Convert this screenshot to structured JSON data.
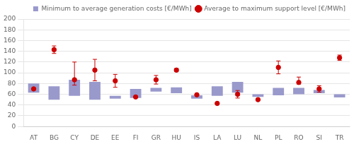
{
  "chart_data": {
    "type": "bar",
    "categories": [
      "AT",
      "BG",
      "CY",
      "DE",
      "EE",
      "FI",
      "GR",
      "HU",
      "IS",
      "LA",
      "LU",
      "NL",
      "PL",
      "RO",
      "SI",
      "TR"
    ],
    "series": [
      {
        "name": "Minimum to average generation costs [€/MWh]",
        "type": "bar",
        "color": "#9999cc",
        "bottom": [
          63,
          50,
          57,
          50,
          52,
          53,
          65,
          62,
          52,
          57,
          63,
          55,
          58,
          60,
          62,
          54
        ],
        "values": [
          80,
          75,
          87,
          83,
          57,
          70,
          72,
          73,
          58,
          75,
          83,
          60,
          72,
          72,
          68,
          60
        ]
      },
      {
        "name": "Average to maximum support level [€/MWh]",
        "type": "scatter",
        "color": "#cc0000",
        "marker": "circle",
        "values": [
          70,
          143,
          87,
          105,
          85,
          55,
          87,
          105,
          59,
          43,
          60,
          50,
          110,
          82,
          70,
          128
        ],
        "error_low": [
          0,
          7,
          10,
          20,
          12,
          0,
          8,
          3,
          0,
          0,
          7,
          0,
          12,
          3,
          6,
          5
        ],
        "error_high": [
          0,
          7,
          33,
          20,
          12,
          0,
          8,
          3,
          0,
          0,
          7,
          0,
          12,
          10,
          6,
          5
        ]
      }
    ],
    "ylim": [
      0,
      200
    ],
    "yticks": [
      0,
      20,
      40,
      60,
      80,
      100,
      120,
      140,
      160,
      180,
      200
    ],
    "grid": true,
    "legend": "upper right"
  }
}
